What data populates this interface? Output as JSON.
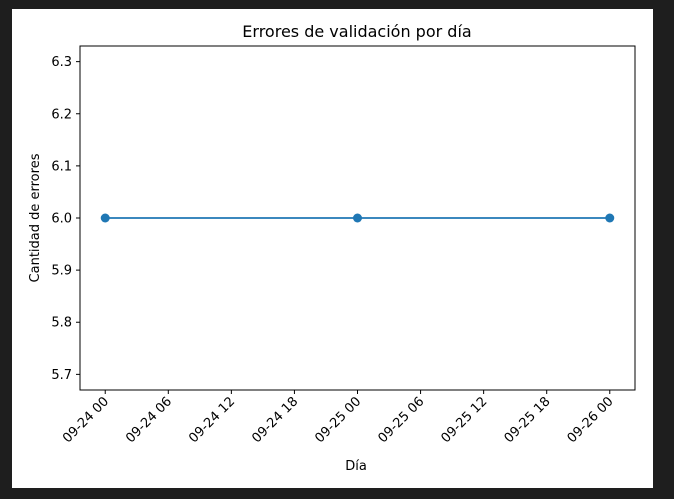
{
  "chart_data": {
    "type": "line",
    "title": "Errores de validación por día",
    "xlabel": "Día",
    "ylabel": "Cantidad de errores",
    "x": [
      "09-24",
      "09-25",
      "09-26"
    ],
    "series": [
      {
        "values": [
          6.0,
          6.0,
          6.0
        ],
        "color": "#1f77b4",
        "marker": "circle"
      }
    ],
    "x_ticks": [
      "09-24 00",
      "09-24 06",
      "09-24 12",
      "09-24 18",
      "09-25 00",
      "09-25 06",
      "09-25 12",
      "09-25 18",
      "09-26 00"
    ],
    "x_tick_hours": [
      0,
      6,
      12,
      18,
      24,
      30,
      36,
      42,
      48
    ],
    "x_point_hours": [
      0,
      24,
      48
    ],
    "xlim_hours": [
      -2.4,
      50.4
    ],
    "y_ticks": [
      "5.7",
      "5.8",
      "5.9",
      "6.0",
      "6.1",
      "6.2",
      "6.3"
    ],
    "ylim": [
      5.67,
      6.33
    ],
    "grid": false,
    "legend": "none"
  }
}
